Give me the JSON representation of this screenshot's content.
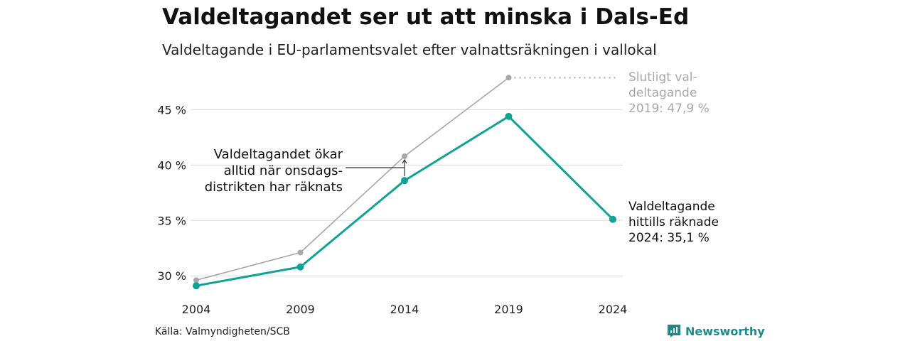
{
  "title": "Valdeltagandet ser ut att minska i Dals-Ed",
  "subtitle": "Valdeltagande i EU-parlamentsvalet efter valnattsräkningen i vallokal",
  "source": "Källa: Valmyndigheten/SCB",
  "brand": "Newsworthy",
  "colors": {
    "teal": "#0fa396",
    "grey": "#a8a8a8",
    "brand": "#1a8c8c"
  },
  "chart_data": {
    "type": "line",
    "x": [
      2004,
      2009,
      2014,
      2019,
      2024
    ],
    "ylim": [
      28.6,
      48.5
    ],
    "yticks": [
      30,
      35,
      40,
      45
    ],
    "ytick_labels": [
      "30 %",
      "35 %",
      "40 %",
      "45 %"
    ],
    "grid": true,
    "series": [
      {
        "key": "final",
        "color": "#a8a8a8",
        "values": [
          29.6,
          32.1,
          40.8,
          47.9,
          null
        ]
      },
      {
        "key": "preliminary",
        "color": "#0fa396",
        "values": [
          29.1,
          30.8,
          38.6,
          44.4,
          35.1
        ]
      }
    ],
    "annotations": {
      "final_label": [
        "Slutligt val-",
        "deltagande",
        "2019: 47,9 %"
      ],
      "prelim_label": [
        "Valdeltagande",
        "hittills räknade",
        "2024: 35,1 %"
      ],
      "increase_label": [
        "Valdeltagandet ökar",
        "alltid när onsdags-",
        "distrikten har räknats"
      ]
    }
  }
}
